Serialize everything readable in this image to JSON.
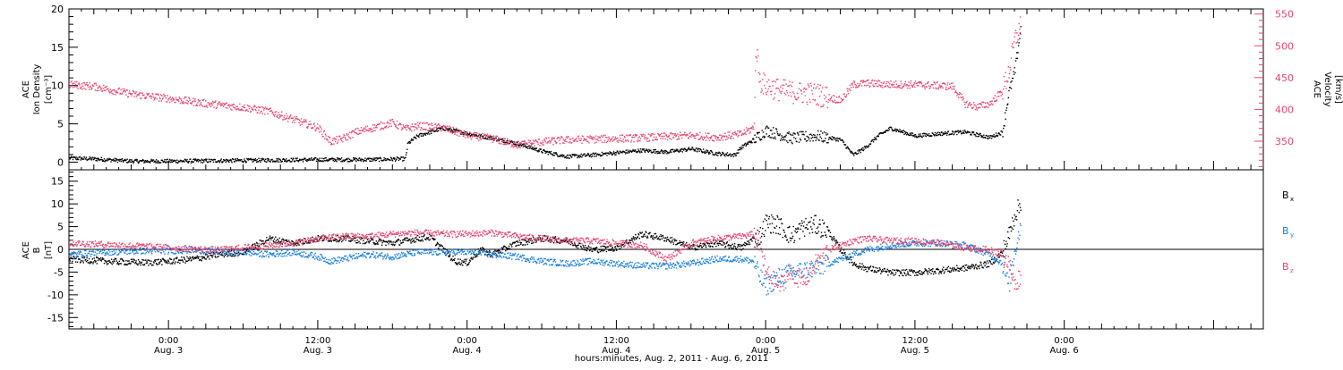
{
  "colors": {
    "black": "#000000",
    "blue": "#1a7fe0",
    "pink": "#e8456e",
    "axis_right": "#e8456e"
  },
  "x_axis": {
    "title": "hours:minutes, Aug.  2, 2011 - Aug.  6, 2011",
    "range_hours": [
      -8,
      88
    ],
    "ticks": [
      {
        "hour": 0,
        "time": "0:00",
        "date": "Aug. 3"
      },
      {
        "hour": 12,
        "time": "12:00",
        "date": "Aug. 3"
      },
      {
        "hour": 24,
        "time": "0:00",
        "date": "Aug. 4"
      },
      {
        "hour": 36,
        "time": "12:00",
        "date": "Aug. 4"
      },
      {
        "hour": 48,
        "time": "0:00",
        "date": "Aug. 5"
      },
      {
        "hour": 60,
        "time": "12:00",
        "date": "Aug. 5"
      },
      {
        "hour": 72,
        "time": "0:00",
        "date": "Aug. 6"
      }
    ]
  },
  "chart_data": [
    {
      "type": "scatter",
      "panel": "top",
      "left_axis": {
        "label_lines": [
          "ACE",
          "Ion Density",
          "[cm⁻³]"
        ],
        "range": [
          -1,
          20
        ],
        "ticks": [
          "0",
          "5",
          "10",
          "15",
          "20"
        ]
      },
      "right_axis": {
        "label_lines": [
          "ACE",
          "Velocity",
          "[km/s]"
        ],
        "range": [
          305,
          558
        ],
        "ticks": [
          "350",
          "400",
          "450",
          "500",
          "550"
        ]
      },
      "series": [
        {
          "color_key": "black",
          "axis": "left",
          "points": [
            [
              -8,
              0.6
            ],
            [
              -6,
              0.5
            ],
            [
              -3,
              0.2
            ],
            [
              0,
              0.2
            ],
            [
              6,
              0.3
            ],
            [
              12,
              0.4
            ],
            [
              16,
              0.4
            ],
            [
              19,
              0.5
            ],
            [
              19.2,
              2.5
            ],
            [
              20,
              3.5
            ],
            [
              21,
              4.0
            ],
            [
              22,
              4.5
            ],
            [
              24,
              3.8
            ],
            [
              26,
              3.2
            ],
            [
              28,
              2.5
            ],
            [
              30,
              1.5
            ],
            [
              32,
              0.8
            ],
            [
              34,
              1.0
            ],
            [
              36,
              1.3
            ],
            [
              38,
              1.6
            ],
            [
              40,
              1.4
            ],
            [
              42,
              1.8
            ],
            [
              44,
              1.2
            ],
            [
              45.5,
              1.0
            ],
            [
              46,
              2.0
            ],
            [
              47,
              3.0
            ],
            [
              48,
              4.2
            ],
            [
              50,
              3.2
            ],
            [
              52,
              3.5
            ],
            [
              54,
              3.0
            ],
            [
              55,
              1.0
            ],
            [
              56,
              2.0
            ],
            [
              57,
              3.5
            ],
            [
              58,
              4.5
            ],
            [
              60,
              3.5
            ],
            [
              62,
              3.8
            ],
            [
              64,
              4.0
            ],
            [
              66,
              3.3
            ],
            [
              67,
              4.0
            ],
            [
              67.5,
              9.0
            ],
            [
              68,
              12.0
            ],
            [
              68.5,
              18.0
            ]
          ]
        },
        {
          "color_key": "pink",
          "axis": "right",
          "points": [
            [
              -8,
              440
            ],
            [
              -6,
              437
            ],
            [
              -3,
              425
            ],
            [
              0,
              418
            ],
            [
              3,
              410
            ],
            [
              6,
              404
            ],
            [
              8,
              398
            ],
            [
              10,
              385
            ],
            [
              12,
              372
            ],
            [
              13,
              350
            ],
            [
              14,
              355
            ],
            [
              15,
              365
            ],
            [
              17,
              375
            ],
            [
              18,
              380
            ],
            [
              19,
              370
            ],
            [
              20,
              375
            ],
            [
              22,
              372
            ],
            [
              24,
              360
            ],
            [
              26,
              355
            ],
            [
              28,
              345
            ],
            [
              30,
              350
            ],
            [
              32,
              353
            ],
            [
              34,
              354
            ],
            [
              36,
              355
            ],
            [
              38,
              356
            ],
            [
              40,
              358
            ],
            [
              42,
              360
            ],
            [
              44,
              357
            ],
            [
              46,
              362
            ],
            [
              47,
              372
            ],
            [
              47.2,
              500
            ],
            [
              47.5,
              445
            ],
            [
              48,
              438
            ],
            [
              49,
              432
            ],
            [
              50,
              428
            ],
            [
              52,
              425
            ],
            [
              53,
              420
            ],
            [
              54,
              415
            ],
            [
              55,
              440
            ],
            [
              56,
              442
            ],
            [
              58,
              440
            ],
            [
              60,
              440
            ],
            [
              62,
              438
            ],
            [
              63,
              437
            ],
            [
              64,
              410
            ],
            [
              65,
              405
            ],
            [
              66,
              410
            ],
            [
              67,
              430
            ],
            [
              67.5,
              460
            ],
            [
              68,
              510
            ],
            [
              68.5,
              535
            ]
          ]
        }
      ]
    },
    {
      "type": "scatter",
      "panel": "bottom",
      "left_axis": {
        "label_lines": [
          "ACE",
          "B",
          "[nT]"
        ],
        "range": [
          -17.5,
          17.5
        ],
        "ticks": [
          "15",
          "10",
          "5",
          "0",
          "-5",
          "-10",
          "-15"
        ]
      },
      "legend": [
        {
          "base": "B",
          "sub": "x",
          "color_key": "black"
        },
        {
          "base": "B",
          "sub": "y",
          "color_key": "blue"
        },
        {
          "base": "B",
          "sub": "z",
          "color_key": "pink"
        }
      ],
      "series": [
        {
          "name": "Bx",
          "color_key": "black",
          "points": [
            [
              -8,
              -2
            ],
            [
              -5,
              -2.5
            ],
            [
              -2,
              -2.8
            ],
            [
              0,
              -2.5
            ],
            [
              2,
              -2
            ],
            [
              4,
              -1
            ],
            [
              6,
              -0.5
            ],
            [
              8,
              2.5
            ],
            [
              10,
              1.5
            ],
            [
              12,
              2.5
            ],
            [
              14,
              2.5
            ],
            [
              16,
              2.0
            ],
            [
              18,
              1.5
            ],
            [
              20,
              2.5
            ],
            [
              21,
              2.8
            ],
            [
              23,
              -2.5
            ],
            [
              24,
              -2.8
            ],
            [
              25,
              0
            ],
            [
              26,
              -1
            ],
            [
              28,
              1.5
            ],
            [
              30,
              2.5
            ],
            [
              32,
              2.0
            ],
            [
              34,
              0
            ],
            [
              36,
              0.5
            ],
            [
              38,
              3.5
            ],
            [
              40,
              2.5
            ],
            [
              42,
              0.5
            ],
            [
              44,
              1.5
            ],
            [
              46,
              0.5
            ],
            [
              47,
              2.5
            ],
            [
              47.5,
              3
            ],
            [
              48,
              6
            ],
            [
              49,
              5.5
            ],
            [
              50,
              3
            ],
            [
              51,
              5
            ],
            [
              52,
              5.5
            ],
            [
              53,
              4.0
            ],
            [
              54,
              0
            ],
            [
              55,
              -3
            ],
            [
              56,
              -4
            ],
            [
              58,
              -5
            ],
            [
              60,
              -5
            ],
            [
              62,
              -4.5
            ],
            [
              64,
              -4
            ],
            [
              66,
              -3
            ],
            [
              67,
              -0.5
            ],
            [
              67.5,
              3
            ],
            [
              68,
              8
            ],
            [
              68.5,
              10
            ]
          ]
        },
        {
          "name": "By",
          "color_key": "blue",
          "points": [
            [
              -8,
              -1
            ],
            [
              -5,
              -0.5
            ],
            [
              -2,
              -0.2
            ],
            [
              0,
              -0.2
            ],
            [
              2,
              0
            ],
            [
              4,
              -0.5
            ],
            [
              6,
              -0.5
            ],
            [
              8,
              -1
            ],
            [
              10,
              -0.5
            ],
            [
              12,
              -1.5
            ],
            [
              13,
              -2.5
            ],
            [
              14,
              -2
            ],
            [
              16,
              -1
            ],
            [
              18,
              -1.5
            ],
            [
              20,
              -0.5
            ],
            [
              22,
              -0.5
            ],
            [
              24,
              -0.5
            ],
            [
              26,
              -1
            ],
            [
              28,
              -1.5
            ],
            [
              30,
              -2.5
            ],
            [
              32,
              -3
            ],
            [
              34,
              -2.5
            ],
            [
              36,
              -3
            ],
            [
              38,
              -3.5
            ],
            [
              40,
              -3.5
            ],
            [
              42,
              -3
            ],
            [
              44,
              -2
            ],
            [
              46,
              -2
            ],
            [
              47,
              -2.5
            ],
            [
              47.5,
              -6
            ],
            [
              48,
              -8
            ],
            [
              49,
              -6
            ],
            [
              50,
              -5
            ],
            [
              52,
              -4
            ],
            [
              54,
              -2
            ],
            [
              56,
              0
            ],
            [
              58,
              1
            ],
            [
              60,
              1.5
            ],
            [
              62,
              1.5
            ],
            [
              64,
              1.0
            ],
            [
              66,
              -1
            ],
            [
              67,
              -3
            ],
            [
              67.5,
              -8
            ],
            [
              68,
              0
            ],
            [
              68.5,
              6
            ]
          ]
        },
        {
          "name": "Bz",
          "color_key": "pink",
          "points": [
            [
              -8,
              1.5
            ],
            [
              -5,
              1.2
            ],
            [
              -2,
              0.8
            ],
            [
              0,
              0.5
            ],
            [
              2,
              0.2
            ],
            [
              4,
              0
            ],
            [
              6,
              0.5
            ],
            [
              8,
              1.0
            ],
            [
              10,
              1.5
            ],
            [
              12,
              2.5
            ],
            [
              14,
              3.0
            ],
            [
              16,
              3.0
            ],
            [
              18,
              3.5
            ],
            [
              20,
              3.8
            ],
            [
              22,
              3.5
            ],
            [
              24,
              3.5
            ],
            [
              26,
              3.8
            ],
            [
              28,
              3.0
            ],
            [
              30,
              2.5
            ],
            [
              32,
              2.0
            ],
            [
              34,
              2.0
            ],
            [
              36,
              1.5
            ],
            [
              38,
              1.0
            ],
            [
              40,
              -2
            ],
            [
              42,
              1.5
            ],
            [
              44,
              2.5
            ],
            [
              46,
              3
            ],
            [
              47,
              3.5
            ],
            [
              47.5,
              1.0
            ],
            [
              48,
              -5
            ],
            [
              49,
              -8
            ],
            [
              50,
              -5
            ],
            [
              51,
              -7
            ],
            [
              52,
              -3
            ],
            [
              53,
              0
            ],
            [
              54,
              1.0
            ],
            [
              55,
              2.0
            ],
            [
              56,
              2.5
            ],
            [
              58,
              2.0
            ],
            [
              60,
              2.0
            ],
            [
              62,
              1.5
            ],
            [
              64,
              0.5
            ],
            [
              66,
              0
            ],
            [
              67,
              -1
            ],
            [
              67.5,
              -3
            ],
            [
              68,
              -8
            ],
            [
              68.5,
              -5
            ]
          ]
        }
      ]
    }
  ]
}
